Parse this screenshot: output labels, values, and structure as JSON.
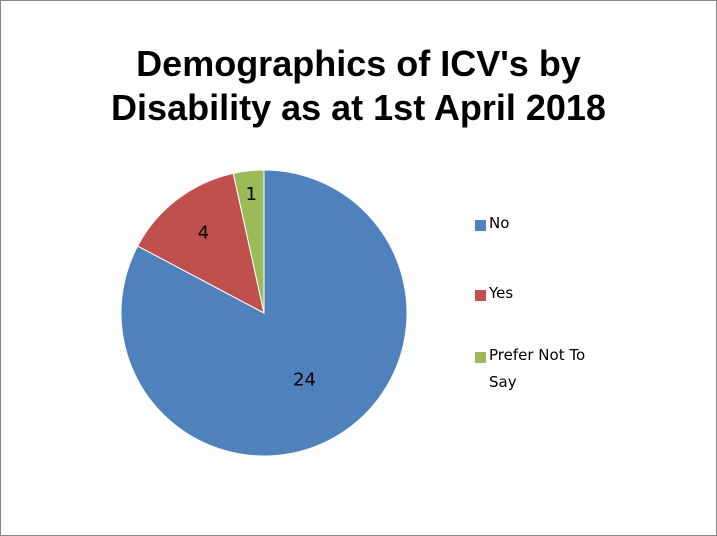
{
  "chart_data": {
    "type": "pie",
    "title_lines": [
      "Demographics of ICV's by",
      "Disability as at 1st April 2018"
    ],
    "slices": [
      {
        "label": "No",
        "value": 24,
        "color": "#4F81BD"
      },
      {
        "label": "Yes",
        "value": 4,
        "color": "#C0504D"
      },
      {
        "label": "Prefer Not To Say",
        "value": 1,
        "color": "#9BBB59"
      }
    ],
    "data_labels": true,
    "legend_position": "right",
    "legend": [
      "No",
      "Yes",
      "Prefer Not To Say"
    ]
  }
}
